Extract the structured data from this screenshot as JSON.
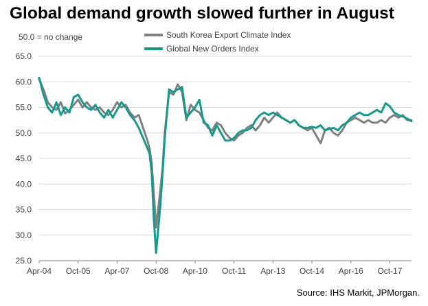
{
  "chart_data": {
    "type": "line",
    "title": "Global demand growth slowed further in August",
    "subtitle": "50.0 = no change",
    "source": "Source: IHS Markit, JPMorgan.",
    "xlabel": "",
    "ylabel": "",
    "ylim": [
      25,
      65
    ],
    "y_ticks": [
      "25.0",
      "30.0",
      "35.0",
      "40.0",
      "45.0",
      "50.0",
      "55.0",
      "60.0",
      "65.0"
    ],
    "x_ticks": [
      "Apr-04",
      "Oct-05",
      "Apr-07",
      "Oct-08",
      "Apr-10",
      "Oct-11",
      "Apr-13",
      "Oct-14",
      "Apr-16",
      "Oct-17"
    ],
    "x_tick_months": [
      0,
      18,
      36,
      54,
      72,
      90,
      108,
      126,
      144,
      162
    ],
    "x_range_months": [
      0,
      172
    ],
    "grid": "horizontal",
    "legend_placement": "top-center",
    "series": [
      {
        "name": "South Korea Export Climate Index",
        "color": "#808080",
        "x": [
          0,
          2,
          4,
          6,
          8,
          10,
          12,
          14,
          16,
          18,
          20,
          22,
          24,
          26,
          28,
          30,
          32,
          34,
          36,
          38,
          40,
          42,
          44,
          46,
          48,
          50,
          51,
          52,
          53,
          54,
          56,
          57,
          58,
          60,
          62,
          64,
          66,
          68,
          70,
          72,
          74,
          76,
          78,
          80,
          82,
          84,
          86,
          88,
          90,
          92,
          94,
          96,
          98,
          100,
          102,
          104,
          106,
          108,
          110,
          112,
          114,
          116,
          118,
          120,
          122,
          124,
          126,
          128,
          130,
          132,
          134,
          136,
          138,
          140,
          142,
          144,
          146,
          148,
          150,
          152,
          154,
          156,
          158,
          160,
          162,
          164,
          166,
          168,
          170,
          172
        ],
        "values": [
          60.5,
          58.5,
          56.0,
          55.0,
          54.5,
          56.0,
          53.8,
          54.5,
          55.5,
          56.5,
          55.0,
          56.0,
          55.0,
          54.5,
          55.0,
          54.0,
          53.5,
          54.5,
          56.0,
          55.0,
          55.5,
          54.0,
          53.0,
          53.5,
          51.0,
          48.5,
          47.0,
          44.0,
          38.0,
          31.5,
          39.0,
          43.0,
          50.0,
          58.0,
          57.5,
          59.5,
          58.0,
          52.5,
          55.5,
          54.5,
          54.0,
          52.5,
          51.0,
          50.5,
          52.0,
          51.5,
          50.0,
          49.0,
          48.5,
          49.5,
          50.0,
          51.0,
          51.5,
          50.5,
          51.5,
          53.0,
          52.0,
          53.0,
          54.0,
          53.0,
          52.5,
          52.0,
          52.5,
          51.5,
          51.0,
          50.5,
          51.0,
          49.5,
          48.0,
          50.5,
          51.0,
          50.0,
          49.5,
          50.5,
          52.0,
          52.5,
          53.0,
          52.5,
          52.0,
          52.5,
          52.0,
          52.0,
          52.5,
          52.0,
          53.0,
          53.5,
          53.0,
          53.5,
          52.5,
          52.5
        ]
      },
      {
        "name": "Global New Orders Index",
        "color": "#149a8e",
        "x": [
          0,
          2,
          4,
          6,
          8,
          10,
          12,
          14,
          16,
          18,
          20,
          22,
          24,
          26,
          28,
          30,
          32,
          34,
          36,
          38,
          40,
          42,
          44,
          46,
          48,
          50,
          51,
          52,
          53,
          54,
          56,
          57,
          58,
          60,
          62,
          64,
          66,
          68,
          70,
          72,
          74,
          76,
          78,
          80,
          82,
          84,
          86,
          88,
          90,
          92,
          94,
          96,
          98,
          100,
          102,
          104,
          106,
          108,
          110,
          112,
          114,
          116,
          118,
          120,
          122,
          124,
          126,
          128,
          130,
          132,
          134,
          136,
          138,
          140,
          142,
          144,
          146,
          148,
          150,
          152,
          154,
          156,
          158,
          160,
          162,
          164,
          166,
          168,
          170,
          172
        ],
        "values": [
          60.8,
          57.5,
          55.0,
          54.0,
          56.0,
          53.5,
          55.0,
          54.0,
          57.0,
          57.5,
          56.0,
          55.0,
          54.5,
          55.5,
          54.0,
          53.0,
          54.5,
          53.0,
          54.5,
          56.0,
          55.0,
          53.5,
          52.5,
          51.0,
          49.0,
          47.0,
          46.0,
          42.0,
          33.0,
          26.5,
          36.0,
          42.0,
          49.0,
          58.5,
          58.0,
          58.5,
          59.0,
          53.0,
          54.0,
          55.0,
          56.5,
          52.0,
          51.5,
          49.5,
          51.5,
          50.0,
          48.5,
          48.5,
          49.0,
          50.0,
          50.5,
          50.5,
          51.0,
          52.5,
          53.5,
          54.0,
          53.5,
          54.0,
          53.5,
          53.0,
          52.5,
          52.0,
          52.5,
          51.5,
          51.0,
          51.0,
          51.2,
          51.0,
          51.5,
          50.5,
          50.8,
          51.0,
          50.5,
          51.5,
          52.0,
          53.0,
          53.5,
          54.0,
          53.5,
          53.5,
          54.0,
          54.5,
          54.0,
          55.8,
          55.2,
          54.0,
          53.5,
          53.2,
          52.8,
          52.3
        ]
      }
    ]
  }
}
